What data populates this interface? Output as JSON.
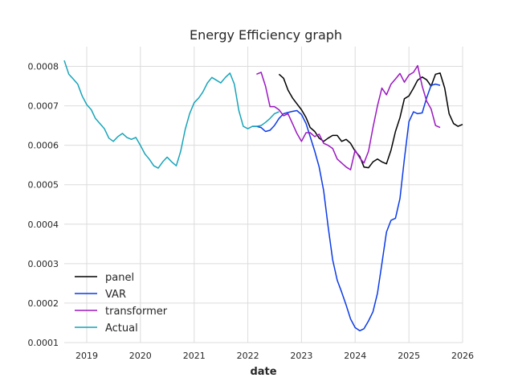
{
  "chart_data": {
    "type": "line",
    "title": "Energy Efficiency graph",
    "xlabel": "date",
    "ylabel": "",
    "xlim": [
      "2018-08-01",
      "2026-01-01"
    ],
    "ylim": [
      0.0001,
      0.00085
    ],
    "x_ticks": [
      {
        "label": "2019",
        "date": "2019-01-01"
      },
      {
        "label": "2020",
        "date": "2020-01-01"
      },
      {
        "label": "2021",
        "date": "2021-01-01"
      },
      {
        "label": "2022",
        "date": "2022-01-01"
      },
      {
        "label": "2023",
        "date": "2023-01-01"
      },
      {
        "label": "2024",
        "date": "2024-01-01"
      },
      {
        "label": "2025",
        "date": "2025-01-01"
      },
      {
        "label": "2026",
        "date": "2026-01-01"
      }
    ],
    "y_ticks": [
      {
        "label": "0.0001",
        "value": 0.0001
      },
      {
        "label": "0.0002",
        "value": 0.0002
      },
      {
        "label": "0.0003",
        "value": 0.0003
      },
      {
        "label": "0.0004",
        "value": 0.0004
      },
      {
        "label": "0.0005",
        "value": 0.0005
      },
      {
        "label": "0.0006",
        "value": 0.0006
      },
      {
        "label": "0.0007",
        "value": 0.0007
      },
      {
        "label": "0.0008",
        "value": 0.0008
      }
    ],
    "grid": true,
    "legend_position": "lower-left",
    "series": [
      {
        "name": "panel",
        "color": "#000000",
        "x": [
          "2022-08",
          "2022-09",
          "2022-10",
          "2022-11",
          "2022-12",
          "2023-01",
          "2023-02",
          "2023-03",
          "2023-04",
          "2023-05",
          "2023-06",
          "2023-07",
          "2023-08",
          "2023-09",
          "2023-10",
          "2023-11",
          "2023-12",
          "2024-01",
          "2024-02",
          "2024-03",
          "2024-04",
          "2024-05",
          "2024-06",
          "2024-07",
          "2024-08",
          "2024-09",
          "2024-10",
          "2024-11",
          "2024-12",
          "2025-01",
          "2025-02",
          "2025-03",
          "2025-04",
          "2025-05",
          "2025-06",
          "2025-07",
          "2025-08",
          "2025-09",
          "2025-10",
          "2025-11",
          "2025-12",
          "2026-01"
        ],
        "y": [
          0.00078,
          0.00077,
          0.00074,
          0.00072,
          0.000705,
          0.00069,
          0.00067,
          0.000645,
          0.000635,
          0.000618,
          0.00061,
          0.000618,
          0.000625,
          0.000625,
          0.00061,
          0.000615,
          0.000605,
          0.000585,
          0.000572,
          0.000545,
          0.000543,
          0.000558,
          0.000565,
          0.000558,
          0.000553,
          0.000588,
          0.000635,
          0.00067,
          0.000718,
          0.000725,
          0.000745,
          0.000765,
          0.000773,
          0.000766,
          0.00075,
          0.00078,
          0.000783,
          0.000745,
          0.00068,
          0.000655,
          0.000648,
          0.000653
        ]
      },
      {
        "name": "VAR",
        "color": "#0b3be6",
        "x": [
          "2022-02",
          "2022-03",
          "2022-04",
          "2022-05",
          "2022-06",
          "2022-07",
          "2022-08",
          "2022-09",
          "2022-10",
          "2022-11",
          "2022-12",
          "2023-01",
          "2023-02",
          "2023-03",
          "2023-04",
          "2023-05",
          "2023-06",
          "2023-07",
          "2023-08",
          "2023-09",
          "2023-10",
          "2023-11",
          "2023-12",
          "2024-01",
          "2024-02",
          "2024-03",
          "2024-04",
          "2024-05",
          "2024-06",
          "2024-07",
          "2024-08",
          "2024-09",
          "2024-10",
          "2024-11",
          "2024-12",
          "2025-01",
          "2025-02",
          "2025-03",
          "2025-04",
          "2025-05",
          "2025-06",
          "2025-07",
          "2025-08"
        ],
        "y": [
          0.000648,
          0.000648,
          0.000645,
          0.000635,
          0.000638,
          0.00065,
          0.000668,
          0.00068,
          0.000683,
          0.000686,
          0.000688,
          0.000678,
          0.000655,
          0.000622,
          0.000585,
          0.000545,
          0.000485,
          0.000395,
          0.00031,
          0.000258,
          0.000228,
          0.000195,
          0.00016,
          0.000138,
          0.00013,
          0.000135,
          0.000155,
          0.000178,
          0.000225,
          0.0003,
          0.00038,
          0.00041,
          0.000415,
          0.000465,
          0.000565,
          0.00066,
          0.000685,
          0.00068,
          0.000682,
          0.00072,
          0.000752,
          0.000755,
          0.000752
        ]
      },
      {
        "name": "transformer",
        "color": "#9a18c0",
        "x": [
          "2022-03",
          "2022-04",
          "2022-05",
          "2022-06",
          "2022-07",
          "2022-08",
          "2022-09",
          "2022-10",
          "2022-11",
          "2022-12",
          "2023-01",
          "2023-02",
          "2023-03",
          "2023-04",
          "2023-05",
          "2023-06",
          "2023-07",
          "2023-08",
          "2023-09",
          "2023-10",
          "2023-11",
          "2023-12",
          "2024-01",
          "2024-02",
          "2024-03",
          "2024-04",
          "2024-05",
          "2024-06",
          "2024-07",
          "2024-08",
          "2024-09",
          "2024-10",
          "2024-11",
          "2024-12",
          "2025-01",
          "2025-02",
          "2025-03",
          "2025-04",
          "2025-05",
          "2025-06",
          "2025-07",
          "2025-08"
        ],
        "y": [
          0.00078,
          0.000785,
          0.00075,
          0.000698,
          0.000698,
          0.00069,
          0.000675,
          0.00068,
          0.000655,
          0.00063,
          0.00061,
          0.000632,
          0.000632,
          0.000622,
          0.000628,
          0.000605,
          0.0006,
          0.000592,
          0.000565,
          0.000555,
          0.000545,
          0.000538,
          0.000588,
          0.000568,
          0.000555,
          0.000585,
          0.000645,
          0.0007,
          0.000745,
          0.000728,
          0.000755,
          0.000768,
          0.000782,
          0.00076,
          0.000778,
          0.000785,
          0.000802,
          0.00075,
          0.000712,
          0.000692,
          0.00065,
          0.000645
        ]
      },
      {
        "name": "Actual",
        "color": "#17a4b9",
        "x": [
          "2018-08",
          "2018-09",
          "2018-10",
          "2018-11",
          "2018-12",
          "2019-01",
          "2019-02",
          "2019-03",
          "2019-04",
          "2019-05",
          "2019-06",
          "2019-07",
          "2019-08",
          "2019-09",
          "2019-10",
          "2019-11",
          "2019-12",
          "2020-01",
          "2020-02",
          "2020-03",
          "2020-04",
          "2020-05",
          "2020-06",
          "2020-07",
          "2020-08",
          "2020-09",
          "2020-10",
          "2020-11",
          "2020-12",
          "2021-01",
          "2021-02",
          "2021-03",
          "2021-04",
          "2021-05",
          "2021-06",
          "2021-07",
          "2021-08",
          "2021-09",
          "2021-10",
          "2021-11",
          "2021-12",
          "2022-01",
          "2022-02",
          "2022-03",
          "2022-04",
          "2022-05",
          "2022-06",
          "2022-07",
          "2022-08"
        ],
        "y": [
          0.000815,
          0.00078,
          0.000768,
          0.000755,
          0.000725,
          0.000703,
          0.00069,
          0.000668,
          0.000655,
          0.000642,
          0.000618,
          0.00061,
          0.000622,
          0.00063,
          0.00062,
          0.000615,
          0.00062,
          0.0006,
          0.000578,
          0.000565,
          0.000548,
          0.000542,
          0.000558,
          0.00057,
          0.000558,
          0.000548,
          0.000585,
          0.00064,
          0.00068,
          0.000708,
          0.00072,
          0.000735,
          0.000758,
          0.000772,
          0.000765,
          0.000758,
          0.000772,
          0.000783,
          0.000755,
          0.000688,
          0.000648,
          0.000642,
          0.000648,
          0.000648,
          0.00065,
          0.000658,
          0.000668,
          0.00068,
          0.000685
        ]
      }
    ]
  }
}
